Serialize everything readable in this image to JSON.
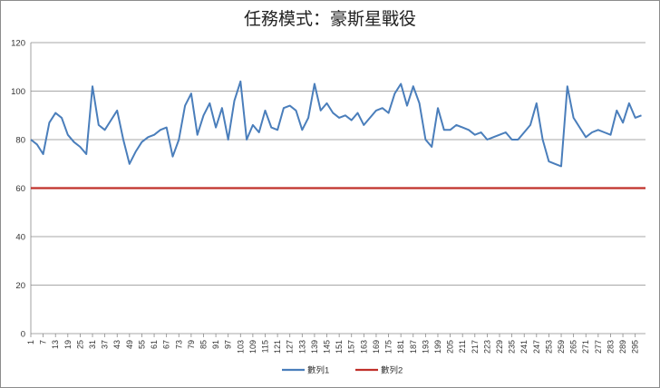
{
  "chart_data": {
    "type": "line",
    "title": "任務模式：豪斯星戰役",
    "xlabel": "",
    "ylabel": "",
    "ylim": [
      0,
      120
    ],
    "yticks": [
      0,
      20,
      40,
      60,
      80,
      100,
      120
    ],
    "x_tick_labels": [
      "1",
      "7",
      "13",
      "19",
      "25",
      "31",
      "37",
      "43",
      "49",
      "55",
      "61",
      "67",
      "73",
      "79",
      "85",
      "91",
      "97",
      "103",
      "109",
      "115",
      "121",
      "127",
      "133",
      "139",
      "145",
      "151",
      "157",
      "163",
      "169",
      "175",
      "181",
      "187",
      "193",
      "199",
      "205",
      "211",
      "217",
      "223",
      "229",
      "235",
      "241",
      "247",
      "253",
      "259",
      "265",
      "271",
      "277",
      "283",
      "289",
      "295"
    ],
    "x_tick_values": [
      1,
      7,
      13,
      19,
      25,
      31,
      37,
      43,
      49,
      55,
      61,
      67,
      73,
      79,
      85,
      91,
      97,
      103,
      109,
      115,
      121,
      127,
      133,
      139,
      145,
      151,
      157,
      163,
      169,
      175,
      181,
      187,
      193,
      199,
      205,
      211,
      217,
      223,
      229,
      235,
      241,
      247,
      253,
      259,
      265,
      271,
      277,
      283,
      289,
      295
    ],
    "xlim": [
      1,
      300
    ],
    "grid": "horizontal",
    "legend": "bottom",
    "series": [
      {
        "name": "數列1",
        "color": "#4a7ebb",
        "x": [
          1,
          4,
          7,
          10,
          13,
          16,
          19,
          22,
          25,
          28,
          31,
          34,
          37,
          40,
          43,
          46,
          49,
          52,
          55,
          58,
          61,
          64,
          67,
          70,
          73,
          76,
          79,
          82,
          85,
          88,
          91,
          94,
          97,
          100,
          103,
          106,
          109,
          112,
          115,
          118,
          121,
          124,
          127,
          130,
          133,
          136,
          139,
          142,
          145,
          148,
          151,
          154,
          157,
          160,
          163,
          166,
          169,
          172,
          175,
          178,
          181,
          184,
          187,
          190,
          193,
          196,
          199,
          202,
          205,
          208,
          211,
          214,
          217,
          220,
          223,
          226,
          229,
          232,
          235,
          238,
          241,
          244,
          247,
          250,
          253,
          256,
          259,
          262,
          265,
          268,
          271,
          274,
          277,
          280,
          283,
          286,
          289,
          292,
          295,
          298
        ],
        "values": [
          80,
          78,
          74,
          87,
          91,
          89,
          82,
          79,
          77,
          74,
          102,
          86,
          84,
          88,
          92,
          80,
          70,
          75,
          79,
          81,
          82,
          84,
          85,
          73,
          80,
          94,
          99,
          82,
          90,
          95,
          85,
          93,
          80,
          96,
          104,
          80,
          86,
          83,
          92,
          85,
          84,
          93,
          94,
          92,
          84,
          89,
          103,
          92,
          95,
          91,
          89,
          90,
          88,
          91,
          86,
          89,
          92,
          93,
          91,
          99,
          103,
          94,
          102,
          95,
          80,
          77,
          93,
          84,
          84,
          86,
          85,
          84,
          82,
          83,
          80,
          81,
          82,
          83,
          80,
          80,
          83,
          86,
          95,
          80,
          71,
          70,
          69,
          102,
          89,
          85,
          81,
          83,
          84,
          83,
          82,
          92,
          87,
          95,
          89,
          90
        ]
      },
      {
        "name": "數列2",
        "color": "#c0302a",
        "x": [
          1,
          300
        ],
        "values": [
          60,
          60
        ]
      }
    ]
  }
}
